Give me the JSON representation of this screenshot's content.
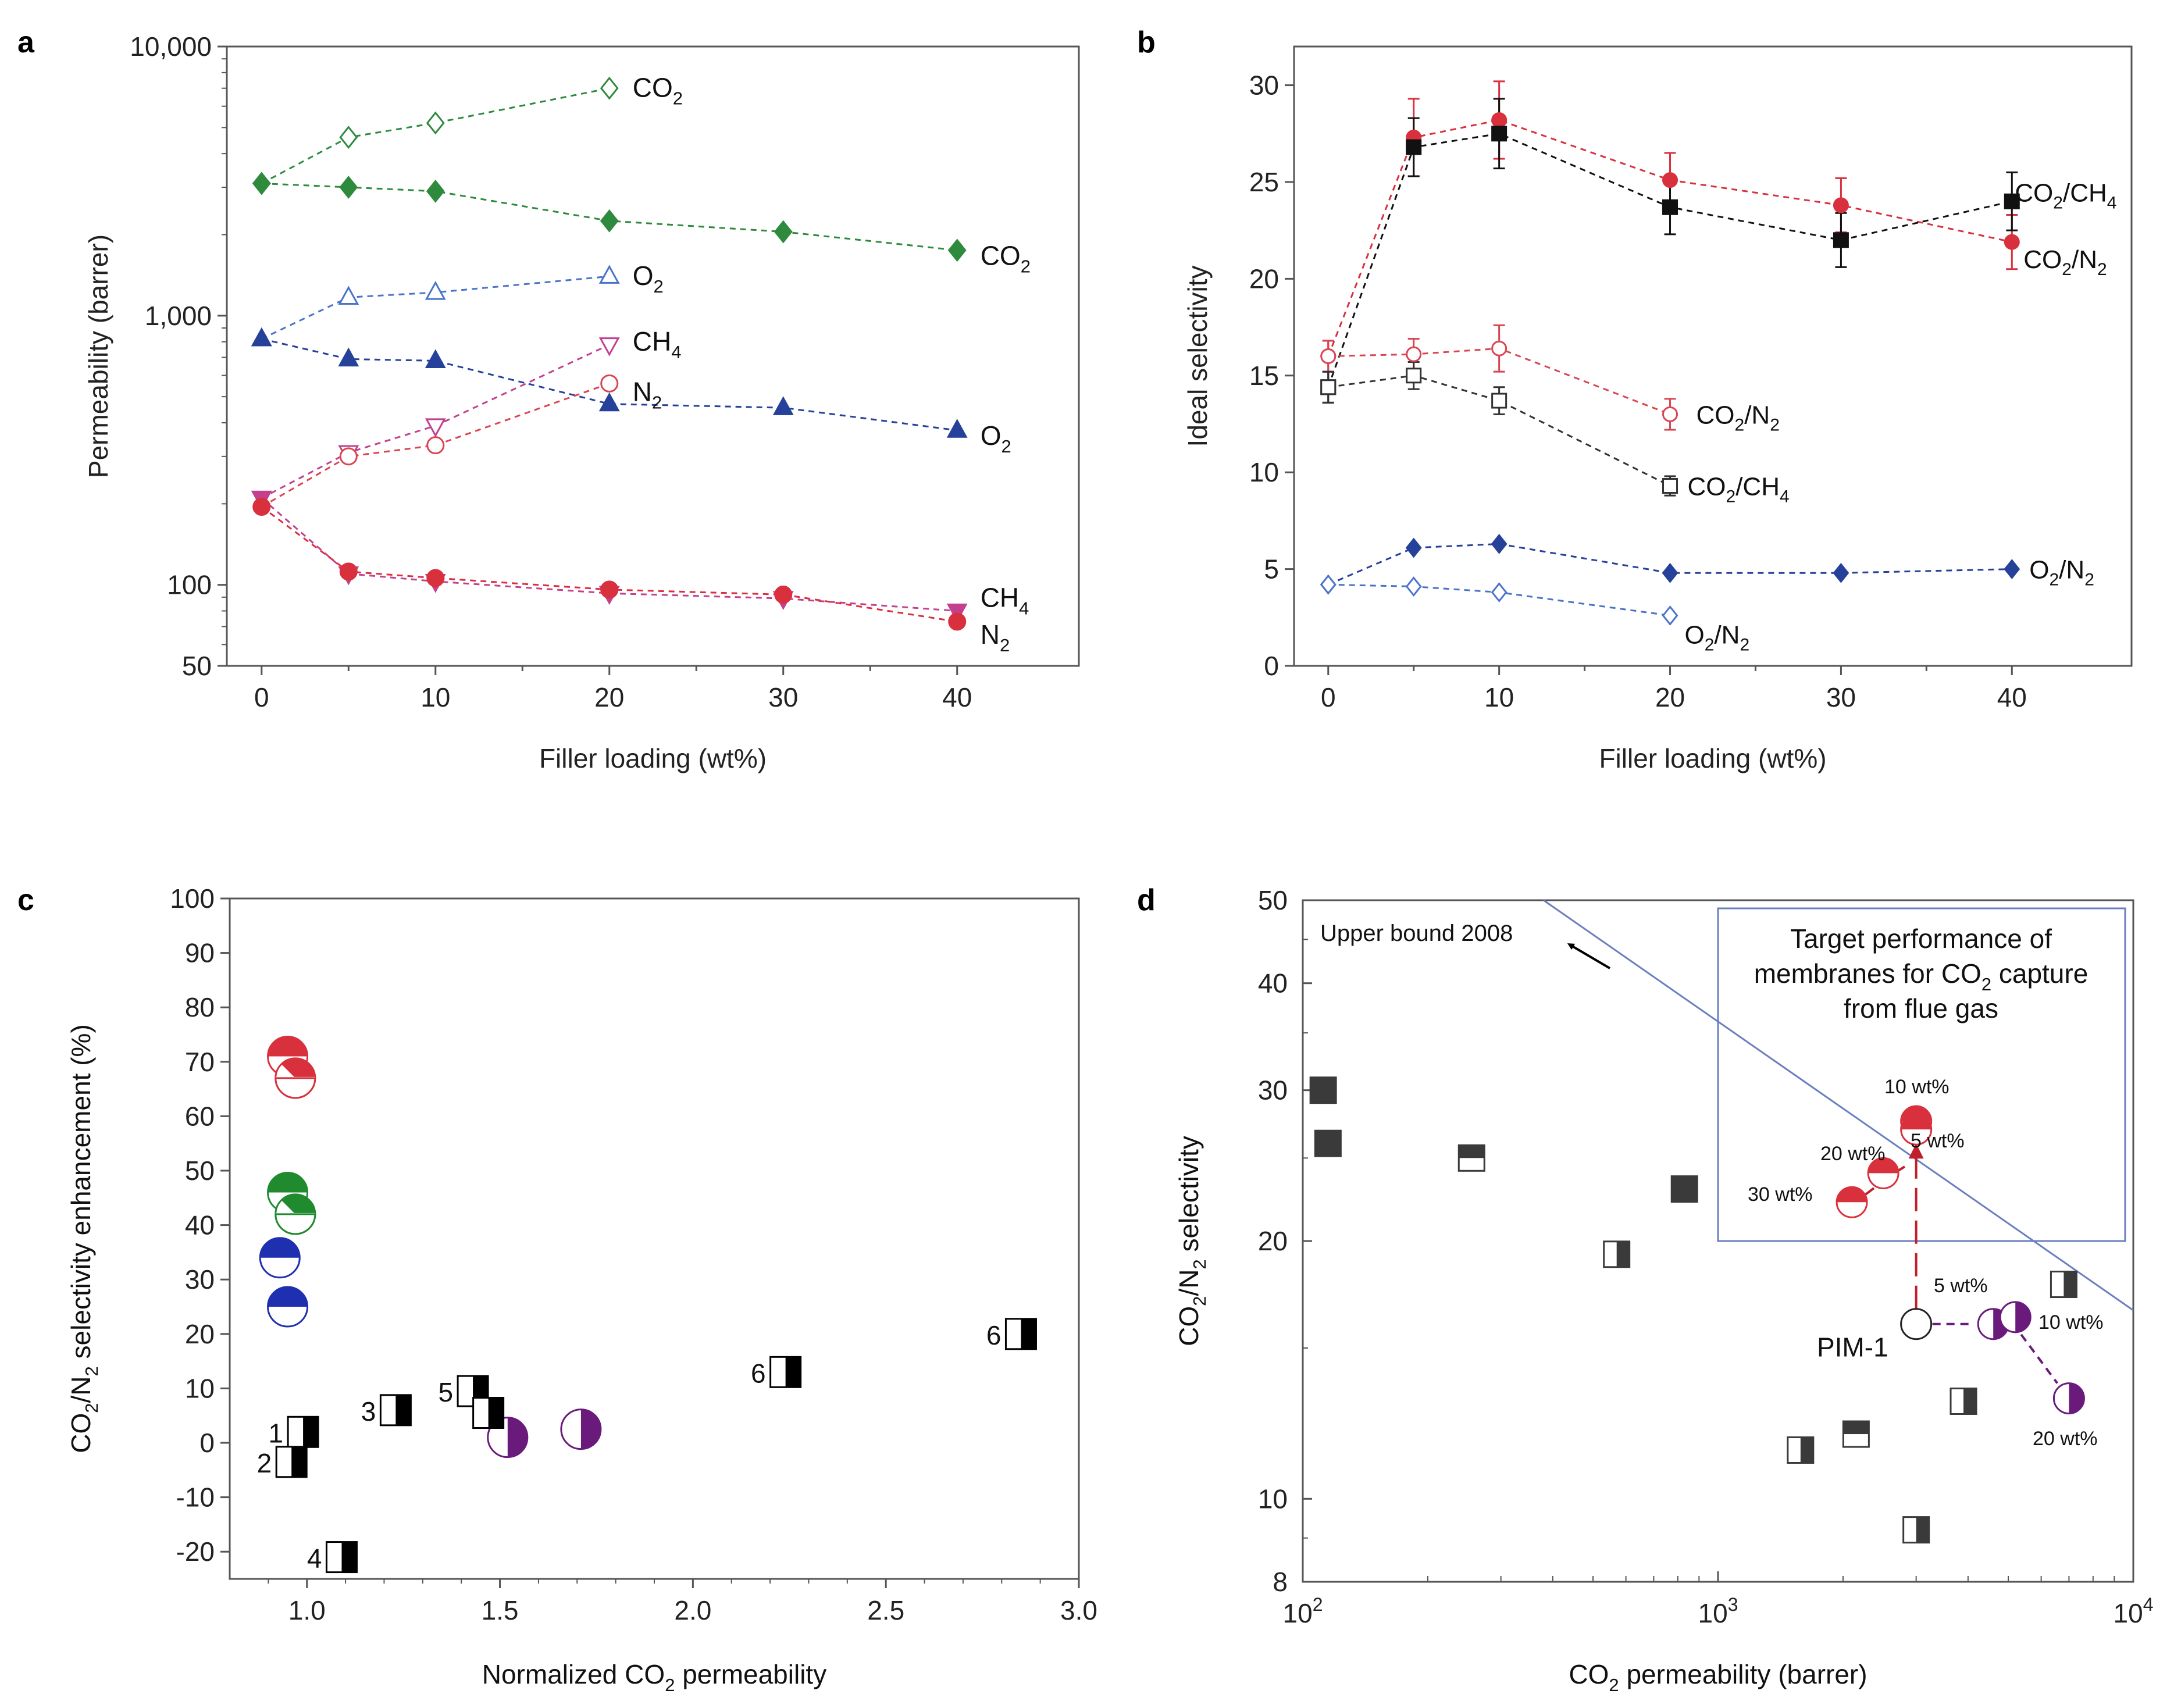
{
  "chart_data": [
    {
      "panel": "a",
      "type": "line",
      "xlabel": "Filler loading (wt%)",
      "ylabel": "Permeability (barrer)",
      "xlim": [
        -2,
        47
      ],
      "ylim": [
        50,
        10000
      ],
      "yscale": "log",
      "xticks": [
        0,
        10,
        20,
        30,
        40
      ],
      "yticks": [
        {
          "v": 10000,
          "label": "10,000"
        },
        {
          "v": 1000,
          "label": "1,000"
        },
        {
          "v": 100,
          "label": "100"
        },
        {
          "v": 50,
          "label": "50"
        }
      ],
      "series": [
        {
          "name": "CO2 open",
          "label": "CO",
          "sub": "2",
          "color": "#2e8b3e",
          "marker": "diamond",
          "filled": false,
          "x": [
            0,
            5,
            10,
            20
          ],
          "y": [
            3100,
            4600,
            5200,
            7000
          ]
        },
        {
          "name": "CO2 filled",
          "label": "CO",
          "sub": "2",
          "color": "#2e8b3e",
          "marker": "diamond",
          "filled": true,
          "x": [
            0,
            5,
            10,
            20,
            30,
            40
          ],
          "y": [
            3100,
            3000,
            2900,
            2250,
            2050,
            1750
          ]
        },
        {
          "name": "O2 open",
          "label": "O",
          "sub": "2",
          "color": "#4a74c9",
          "marker": "triangle",
          "filled": false,
          "x": [
            0,
            5,
            10,
            20
          ],
          "y": [
            820,
            1170,
            1220,
            1400
          ]
        },
        {
          "name": "O2 filled",
          "label": "O",
          "sub": "2",
          "color": "#26419a",
          "marker": "triangle",
          "filled": true,
          "x": [
            0,
            5,
            10,
            20,
            30,
            40
          ],
          "y": [
            820,
            690,
            680,
            470,
            455,
            375
          ]
        },
        {
          "name": "CH4 open",
          "label": "CH",
          "sub": "4",
          "color": "#c2408e",
          "marker": "triangle-down",
          "filled": false,
          "x": [
            0,
            5,
            10,
            20
          ],
          "y": [
            210,
            310,
            390,
            780
          ]
        },
        {
          "name": "N2 open",
          "label": "N",
          "sub": "2",
          "color": "#d94552",
          "marker": "circle",
          "filled": false,
          "x": [
            0,
            5,
            10,
            20
          ],
          "y": [
            195,
            300,
            330,
            560
          ]
        },
        {
          "name": "CH4 filled",
          "label": "CH",
          "sub": "4",
          "color": "#c2408e",
          "marker": "triangle-down",
          "filled": true,
          "x": [
            0,
            5,
            10,
            20,
            30,
            40
          ],
          "y": [
            210,
            110,
            103,
            93,
            89,
            80
          ]
        },
        {
          "name": "N2 filled",
          "label": "N",
          "sub": "2",
          "color": "#d9303d",
          "marker": "circle",
          "filled": true,
          "x": [
            0,
            5,
            10,
            20,
            30,
            40
          ],
          "y": [
            195,
            112,
            106,
            96,
            92,
            73
          ]
        }
      ],
      "annotations": [
        {
          "text": "CO",
          "sub": "2",
          "x": 20,
          "y": 7000
        },
        {
          "text": "CO",
          "sub": "2",
          "x": 40,
          "y": 1750
        },
        {
          "text": "O",
          "sub": "2",
          "x": 20,
          "y": 1400
        },
        {
          "text": "O",
          "sub": "2",
          "x": 40,
          "y": 375
        },
        {
          "text": "CH",
          "sub": "4",
          "x": 20,
          "y": 780
        },
        {
          "text": "N",
          "sub": "2",
          "x": 20,
          "y": 560
        },
        {
          "text": "CH",
          "sub": "4",
          "x": 40,
          "y": 80
        },
        {
          "text": "N",
          "sub": "2",
          "x": 40,
          "y": 73
        }
      ]
    },
    {
      "panel": "b",
      "type": "line",
      "xlabel": "Filler loading (wt%)",
      "ylabel": "Ideal selectivity",
      "xlim": [
        -2,
        47
      ],
      "ylim": [
        0,
        32
      ],
      "xticks": [
        0,
        10,
        20,
        30,
        40
      ],
      "yticks": [
        0,
        5,
        10,
        15,
        20,
        25,
        30
      ],
      "series": [
        {
          "name": "CO2/N2 filled",
          "label": "CO",
          "sub": "2",
          "tail": "/N",
          "tailsub": "2",
          "color": "#d9303d",
          "marker": "circle",
          "filled": true,
          "x": [
            0,
            5,
            10,
            20,
            30,
            40
          ],
          "y": [
            16,
            27.3,
            28.2,
            25.1,
            23.8,
            21.9
          ],
          "err": [
            0.8,
            2,
            2,
            1.4,
            1.4,
            1.4
          ]
        },
        {
          "name": "CO2/CH4 filled",
          "label": "CO",
          "sub": "2",
          "tail": "/CH",
          "tailsub": "4",
          "color": "#111111",
          "marker": "square",
          "filled": true,
          "x": [
            0,
            5,
            10,
            20,
            30,
            40
          ],
          "y": [
            14.4,
            26.8,
            27.5,
            23.7,
            22,
            24
          ],
          "err": [
            0.8,
            1.5,
            1.8,
            1.4,
            1.4,
            1.5
          ]
        },
        {
          "name": "CO2/N2 open",
          "label": "CO",
          "sub": "2",
          "tail": "/N",
          "tailsub": "2",
          "color": "#d94552",
          "marker": "circle",
          "filled": false,
          "x": [
            0,
            5,
            10,
            20
          ],
          "y": [
            16,
            16.1,
            16.4,
            13
          ],
          "err": [
            0.8,
            0.8,
            1.2,
            0.8
          ]
        },
        {
          "name": "CO2/CH4 open",
          "label": "CO",
          "sub": "2",
          "tail": "/CH",
          "tailsub": "4",
          "color": "#333333",
          "marker": "square",
          "filled": false,
          "x": [
            0,
            5,
            10,
            20
          ],
          "y": [
            14.4,
            15,
            13.7,
            9.3
          ],
          "err": [
            0.8,
            0.7,
            0.7,
            0.5
          ]
        },
        {
          "name": "O2/N2 filled",
          "label": "O",
          "sub": "2",
          "tail": "/N",
          "tailsub": "2",
          "color": "#26419a",
          "marker": "diamond",
          "filled": true,
          "x": [
            0,
            5,
            10,
            20,
            30,
            40
          ],
          "y": [
            4.2,
            6.1,
            6.3,
            4.8,
            4.8,
            5
          ],
          "err": [
            0,
            0,
            0,
            0,
            0,
            0
          ]
        },
        {
          "name": "O2/N2 open",
          "label": "O",
          "sub": "2",
          "tail": "/N",
          "tailsub": "2",
          "color": "#4a74c9",
          "marker": "diamond",
          "filled": false,
          "x": [
            0,
            5,
            10,
            20
          ],
          "y": [
            4.2,
            4.1,
            3.8,
            2.6
          ],
          "err": [
            0,
            0,
            0,
            0
          ]
        }
      ],
      "annotations": [
        {
          "text": "CO",
          "sub": "2",
          "tail": "/CH",
          "tailsub": "4",
          "x": 40,
          "y": 24
        },
        {
          "text": "CO",
          "sub": "2",
          "tail": "/N",
          "tailsub": "2",
          "x": 40,
          "y": 21.9
        },
        {
          "text": "CO",
          "sub": "2",
          "tail": "/N",
          "tailsub": "2",
          "x": 20,
          "y": 13
        },
        {
          "text": "CO",
          "sub": "2",
          "tail": "/CH",
          "tailsub": "4",
          "x": 20,
          "y": 9.3
        },
        {
          "text": "O",
          "sub": "2",
          "tail": "/N",
          "tailsub": "2",
          "x": 40,
          "y": 5
        },
        {
          "text": "O",
          "sub": "2",
          "tail": "/N",
          "tailsub": "2",
          "x": 20,
          "y": 2.6
        }
      ]
    },
    {
      "panel": "c",
      "type": "scatter",
      "xlabel": "Normalized CO",
      "xlabel_sub": "2",
      "xlabel_tail": " permeability",
      "ylabel": "CO",
      "ylabel_sub": "2",
      "ylabel_mid": "/N",
      "ylabel_sub2": "2",
      "ylabel_tail": " selectivity enhancement (%)",
      "xlim": [
        0.8,
        3.0
      ],
      "ylim": [
        -25,
        100
      ],
      "xticks": [
        "1.0",
        "1.5",
        "2.0",
        "2.5",
        "3.0"
      ],
      "yticks": [
        100,
        90,
        80,
        70,
        60,
        50,
        40,
        30,
        20,
        10,
        0,
        -10,
        -20
      ],
      "points": [
        {
          "kind": "circle-top",
          "color": "#d9303d",
          "x": 0.95,
          "y": 71
        },
        {
          "kind": "circle-diag",
          "color": "#d9303d",
          "x": 0.97,
          "y": 67
        },
        {
          "kind": "circle-top",
          "color": "#1f8a2e",
          "x": 0.95,
          "y": 46
        },
        {
          "kind": "circle-diag",
          "color": "#1f8a2e",
          "x": 0.97,
          "y": 42
        },
        {
          "kind": "circle-top",
          "color": "#1e2fb0",
          "x": 0.93,
          "y": 34
        },
        {
          "kind": "circle-top",
          "color": "#1e2fb0",
          "x": 0.95,
          "y": 25
        },
        {
          "kind": "circle-right",
          "color": "#6a1a7a",
          "x": 1.52,
          "y": 1
        },
        {
          "kind": "circle-right",
          "color": "#6a1a7a",
          "x": 1.71,
          "y": 2.5
        },
        {
          "kind": "square-right",
          "color": "#000000",
          "label": "1",
          "x": 0.99,
          "y": 2
        },
        {
          "kind": "square-right",
          "color": "#000000",
          "label": "2",
          "x": 0.96,
          "y": -3.5
        },
        {
          "kind": "square-right",
          "color": "#000000",
          "label": "3",
          "x": 1.23,
          "y": 6
        },
        {
          "kind": "square-right",
          "color": "#000000",
          "label": "4",
          "x": 1.09,
          "y": -21
        },
        {
          "kind": "square-right",
          "color": "#000000",
          "label": "5",
          "x": 1.43,
          "y": 9.5
        },
        {
          "kind": "square-right",
          "color": "#000000",
          "label": "",
          "x": 1.47,
          "y": 5.5
        },
        {
          "kind": "square-right",
          "color": "#000000",
          "label": "6",
          "x": 2.24,
          "y": 13
        },
        {
          "kind": "square-right",
          "color": "#000000",
          "label": "6",
          "x": 2.85,
          "y": 20
        }
      ]
    },
    {
      "panel": "d",
      "type": "scatter",
      "xlabel": "CO",
      "xlabel_sub": "2",
      "xlabel_tail": " permeability (barrer)",
      "ylabel": "CO",
      "ylabel_sub": "2",
      "ylabel_mid": "/N",
      "ylabel_sub2": "2",
      "ylabel_tail": " selectivity",
      "xscale": "log",
      "yscale": "log",
      "xlim": [
        100,
        10000
      ],
      "ylim": [
        8,
        50
      ],
      "xticks": [
        {
          "v": 100,
          "base": "10",
          "exp": "2"
        },
        {
          "v": 1000,
          "base": "10",
          "exp": "3"
        },
        {
          "v": 10000,
          "base": "10",
          "exp": "4"
        }
      ],
      "yticks": [
        50,
        40,
        30,
        20,
        10,
        8
      ],
      "upper_bound": {
        "label": "Upper bound 2008",
        "x": [
          380,
          10000
        ],
        "y": [
          50,
          16.6
        ]
      },
      "target_box": {
        "lines": [
          "Target performance of",
          "membranes for CO",
          "from flue gas"
        ],
        "sub": "2",
        "line2_tail": " capture",
        "x": [
          1000,
          10000
        ],
        "y": [
          20,
          50
        ]
      },
      "pim1": {
        "label": "PIM-1",
        "x": 3000,
        "y": 16
      },
      "points": [
        {
          "kind": "sq-full",
          "x": 112,
          "y": 30
        },
        {
          "kind": "sq-full",
          "x": 115,
          "y": 26
        },
        {
          "kind": "sq-top",
          "x": 255,
          "y": 25
        },
        {
          "kind": "sq-full",
          "x": 830,
          "y": 23
        },
        {
          "kind": "sq-right",
          "x": 570,
          "y": 19.3
        },
        {
          "kind": "sq-right",
          "x": 6800,
          "y": 17.8
        },
        {
          "kind": "sq-right",
          "x": 3900,
          "y": 13
        },
        {
          "kind": "sq-top",
          "x": 2150,
          "y": 11.9
        },
        {
          "kind": "sq-right",
          "x": 1580,
          "y": 11.4
        },
        {
          "kind": "sq-right",
          "x": 3000,
          "y": 9.2
        },
        {
          "kind": "red-top",
          "label": "10 wt%",
          "x": 3000,
          "y": 27.6
        },
        {
          "kind": "red-top",
          "label": "5 wt%",
          "x": 3000,
          "y": 27
        },
        {
          "kind": "red-top",
          "label": "20 wt%",
          "x": 2500,
          "y": 24
        },
        {
          "kind": "red-top",
          "label": "30 wt%",
          "x": 2100,
          "y": 22.2
        },
        {
          "kind": "purple-right",
          "label": "5 wt%",
          "x": 4600,
          "y": 16
        },
        {
          "kind": "purple-right",
          "label": "10 wt%",
          "x": 5200,
          "y": 16.3
        },
        {
          "kind": "purple-right",
          "label": "20 wt%",
          "x": 7000,
          "y": 13.1
        }
      ]
    }
  ],
  "panel_letters": [
    "a",
    "b",
    "c",
    "d"
  ]
}
